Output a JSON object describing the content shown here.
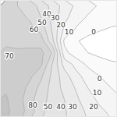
{
  "chart_data": {
    "type": "contour",
    "x": [
      0,
      1,
      2,
      3,
      4,
      5,
      6,
      7,
      8,
      9,
      10
    ],
    "y": [
      10,
      9,
      8,
      7,
      6,
      5,
      4,
      3,
      2,
      1,
      0
    ],
    "z": [
      [
        62,
        60,
        55,
        47,
        36,
        26,
        18,
        13,
        9,
        6,
        4
      ],
      [
        64,
        63,
        59,
        50,
        37,
        23,
        14,
        9,
        6,
        4,
        3
      ],
      [
        66,
        65,
        63,
        57,
        38,
        18,
        9,
        4,
        1,
        -1,
        -2
      ],
      [
        69,
        68,
        67,
        65,
        42,
        8,
        1,
        -3,
        -5,
        -6,
        -6
      ],
      [
        71,
        71,
        72,
        73,
        59,
        13,
        4,
        0,
        -3,
        -5,
        -6
      ],
      [
        73,
        74,
        75,
        72,
        49,
        26,
        17,
        8,
        5,
        2,
        1
      ],
      [
        76,
        75,
        73,
        62,
        47,
        35,
        23,
        16,
        10,
        6,
        4
      ],
      [
        79,
        77,
        67,
        57,
        46,
        37,
        29,
        20,
        14,
        10,
        8
      ],
      [
        81,
        75,
        64,
        54,
        46,
        40,
        32,
        24,
        18,
        12,
        10
      ],
      [
        82,
        76,
        66,
        52,
        46,
        41,
        35,
        28,
        22,
        18,
        15
      ],
      [
        80,
        73,
        60,
        50,
        46,
        41,
        36,
        30,
        25,
        21,
        19
      ]
    ],
    "xlim": [
      0,
      10
    ],
    "ylim": [
      0,
      10
    ],
    "thresholds": [
      0,
      10,
      20,
      30,
      40,
      50,
      60,
      70,
      80
    ],
    "contour_labels": [
      {
        "x": 0.8,
        "y": 5.2,
        "value": 70
      },
      {
        "x": 2.9,
        "y": 7.5,
        "value": 60
      },
      {
        "x": 3.6,
        "y": 8.1,
        "value": 50
      },
      {
        "x": 4.0,
        "y": 8.8,
        "value": 40
      },
      {
        "x": 4.7,
        "y": 8.5,
        "value": 30
      },
      {
        "x": 5.2,
        "y": 7.9,
        "value": 20
      },
      {
        "x": 5.9,
        "y": 7.3,
        "value": 10
      },
      {
        "x": 8.0,
        "y": 7.3,
        "value": 0
      },
      {
        "x": 8.5,
        "y": 3.3,
        "value": 0
      },
      {
        "x": 8.3,
        "y": 2.1,
        "value": 10
      },
      {
        "x": 8.0,
        "y": 0.9,
        "value": 20
      },
      {
        "x": 2.8,
        "y": 1.0,
        "value": 80
      },
      {
        "x": 4.1,
        "y": 0.9,
        "value": 50
      },
      {
        "x": 5.2,
        "y": 0.9,
        "value": 40
      },
      {
        "x": 6.2,
        "y": 0.9,
        "value": 30
      }
    ],
    "tick_labels": false,
    "color": "#b0b0b0"
  }
}
